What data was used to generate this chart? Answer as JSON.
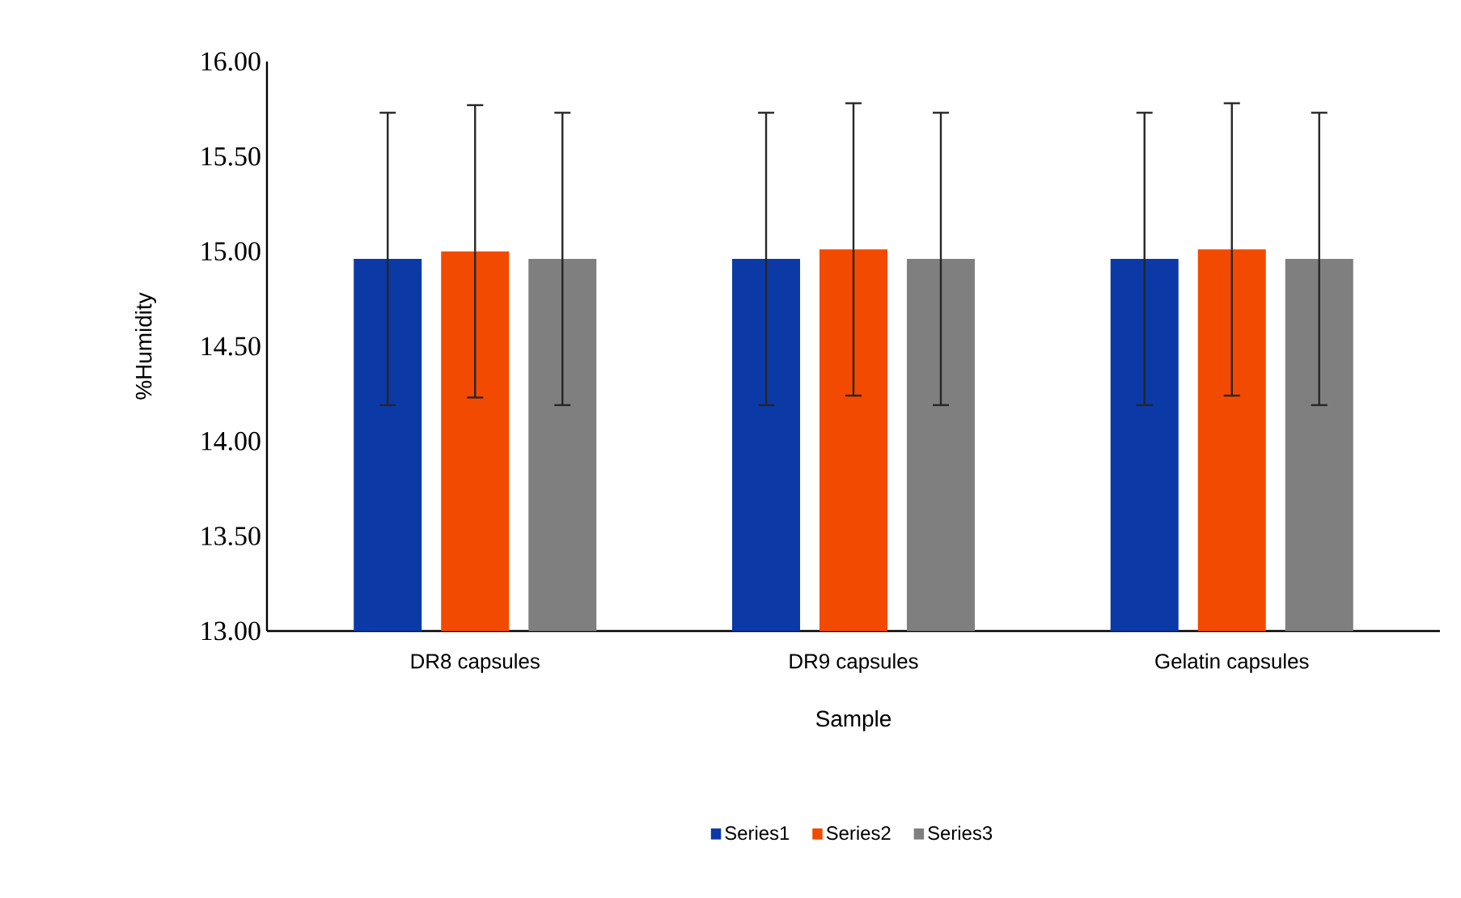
{
  "chart_data": {
    "type": "bar",
    "xlabel": "Sample",
    "ylabel": "%Humidity",
    "categories": [
      "DR8 capsules",
      "DR9 capsules",
      "Gelatin capsules"
    ],
    "series": [
      {
        "name": "Series1",
        "color": "#0b3aa6",
        "values": [
          14.96,
          14.96,
          14.96
        ],
        "errors": [
          0.77,
          0.77,
          0.77
        ]
      },
      {
        "name": "Series2",
        "color": "#f24a00",
        "values": [
          15.0,
          15.01,
          15.01
        ],
        "errors": [
          0.77,
          0.77,
          0.77
        ]
      },
      {
        "name": "Series3",
        "color": "#7f7f7f",
        "values": [
          14.96,
          14.96,
          14.96
        ],
        "errors": [
          0.77,
          0.77,
          0.77
        ]
      }
    ],
    "ylim": [
      13,
      16
    ],
    "yticks": [
      {
        "value": 13,
        "label": "13.00"
      },
      {
        "value": 13.5,
        "label": "13.50"
      },
      {
        "value": 14,
        "label": "14.00"
      },
      {
        "value": 14.5,
        "label": "14.50"
      },
      {
        "value": 15,
        "label": "15.00"
      },
      {
        "value": 15.5,
        "label": "15.50"
      },
      {
        "value": 16,
        "label": "16.00"
      }
    ],
    "grid": false,
    "legend": "bottom"
  }
}
